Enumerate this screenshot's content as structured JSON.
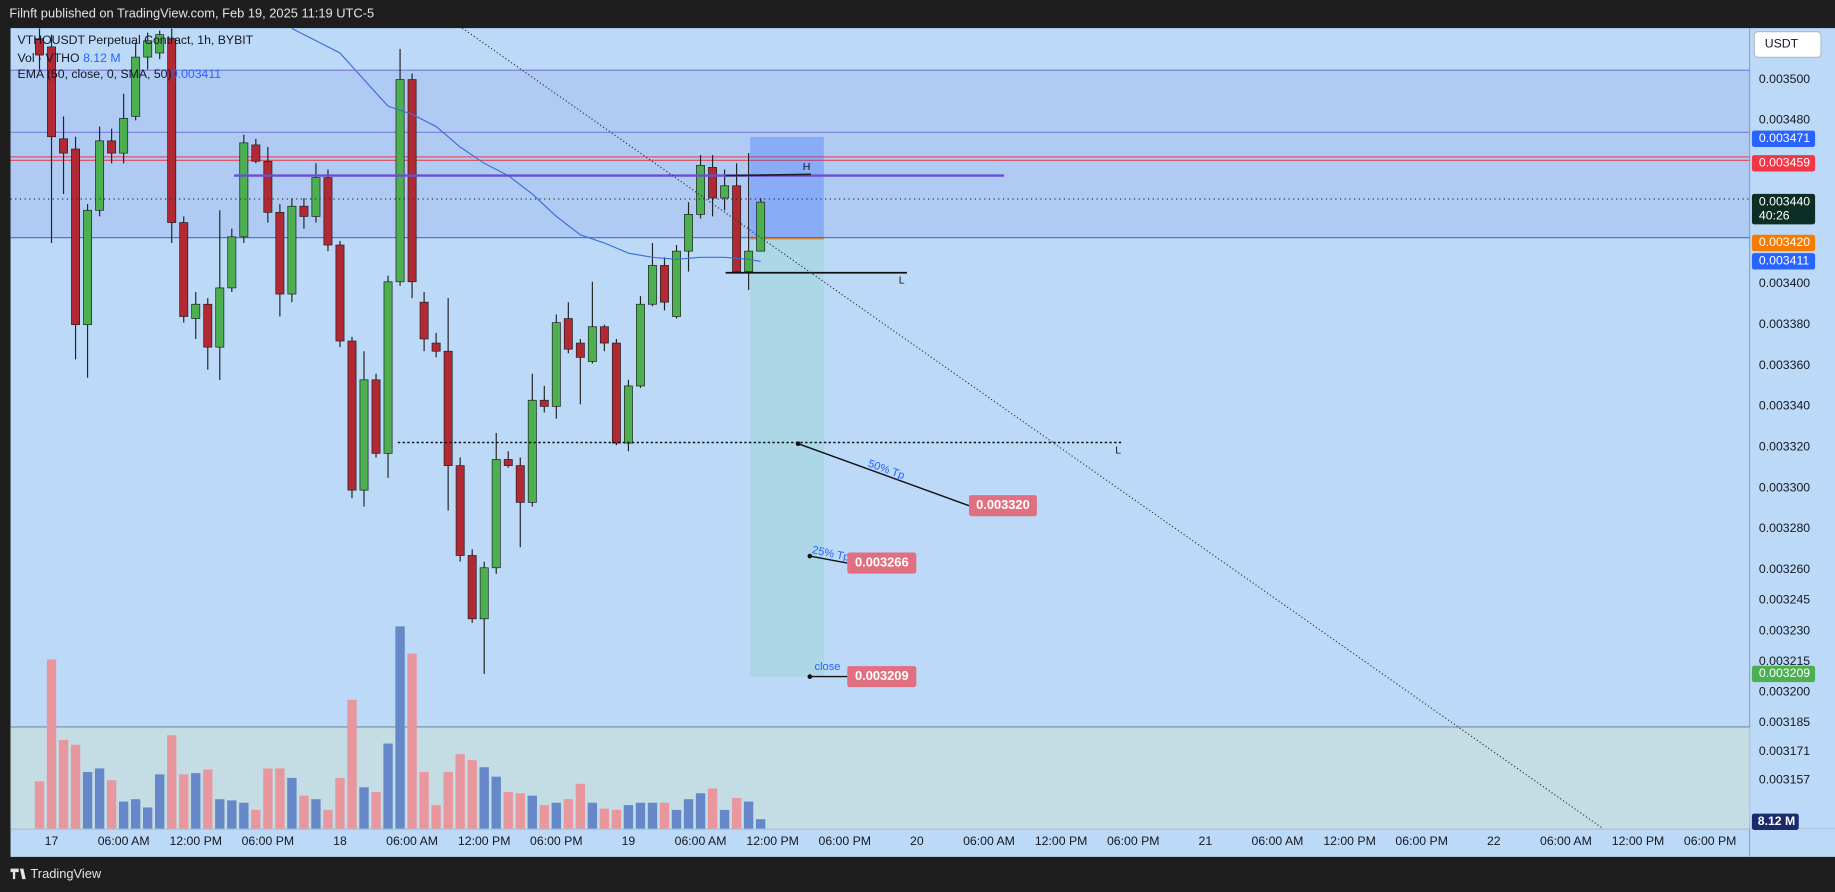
{
  "header": {
    "publisher": "Filnft published on TradingView.com, Feb 19, 2025 11:19 UTC-5"
  },
  "footer": {
    "brand": "TradingView"
  },
  "currency_button": "USDT",
  "chart_data": {
    "type": "candlestick",
    "title": "VTHOUSDT Perpetual Contract, 1h, BYBIT",
    "x": [
      -1,
      0,
      1,
      2,
      3,
      4,
      5,
      6,
      7,
      8,
      9,
      10,
      11,
      12,
      13,
      14,
      15,
      16,
      17,
      18,
      19,
      20,
      21,
      22,
      23,
      24,
      25,
      26,
      27,
      28,
      29,
      30,
      31,
      32,
      33,
      34,
      35,
      36,
      37,
      38,
      39,
      40,
      41,
      42,
      43,
      44,
      45,
      46,
      47,
      48,
      49,
      50,
      51,
      52,
      53,
      54,
      55,
      56,
      57,
      58,
      59
    ],
    "open": [
      0.00352,
      0.003516,
      0.003471,
      0.003466,
      0.00338,
      0.003436,
      0.00347,
      0.003464,
      0.003482,
      0.003511,
      0.003513,
      0.00352,
      0.00343,
      0.003383,
      0.00339,
      0.003369,
      0.003398,
      0.003423,
      0.003468,
      0.00346,
      0.003435,
      0.003395,
      0.003438,
      0.003433,
      0.003452,
      0.003419,
      0.003372,
      0.003299,
      0.003353,
      0.003317,
      0.003401,
      0.0035,
      0.003391,
      0.003371,
      0.003367,
      0.003311,
      0.003267,
      0.003236,
      0.003261,
      0.003314,
      0.003311,
      0.003293,
      0.003343,
      0.00334,
      0.003383,
      0.003371,
      0.003362,
      0.003379,
      0.003371,
      0.003322,
      0.00335,
      0.00339,
      0.003409,
      0.003384,
      0.003416,
      0.003434,
      0.003457,
      0.003442,
      0.003448,
      0.003406,
      0.003416
    ],
    "high": [
      0.003525,
      0.003522,
      0.003482,
      0.003472,
      0.003439,
      0.003477,
      0.003476,
      0.003493,
      0.003518,
      0.003523,
      0.003524,
      0.003525,
      0.003433,
      0.003396,
      0.003393,
      0.003436,
      0.003427,
      0.003473,
      0.003471,
      0.003467,
      0.003439,
      0.003442,
      0.003442,
      0.003459,
      0.003456,
      0.003421,
      0.003374,
      0.003367,
      0.003356,
      0.003404,
      0.003515,
      0.003503,
      0.003396,
      0.003376,
      0.003393,
      0.003315,
      0.00327,
      0.003264,
      0.003327,
      0.003318,
      0.003315,
      0.003356,
      0.00335,
      0.003385,
      0.003391,
      0.003373,
      0.003401,
      0.00338,
      0.003373,
      0.003353,
      0.003394,
      0.00342,
      0.003413,
      0.003419,
      0.00344,
      0.003463,
      0.003463,
      0.003456,
      0.003459,
      0.003464,
      0.003442
    ],
    "low": [
      0.003505,
      0.00342,
      0.003444,
      0.003363,
      0.003354,
      0.003433,
      0.003459,
      0.003459,
      0.00348,
      0.003505,
      0.00351,
      0.00342,
      0.003381,
      0.003373,
      0.003358,
      0.003353,
      0.003396,
      0.00342,
      0.003459,
      0.00343,
      0.003384,
      0.003391,
      0.003427,
      0.00343,
      0.003416,
      0.003369,
      0.003295,
      0.003291,
      0.003315,
      0.003305,
      0.003399,
      0.003393,
      0.003367,
      0.003364,
      0.003289,
      0.003264,
      0.003234,
      0.003209,
      0.003258,
      0.00331,
      0.003271,
      0.003291,
      0.003337,
      0.003334,
      0.003366,
      0.003341,
      0.003361,
      0.003367,
      0.003321,
      0.003318,
      0.003349,
      0.003389,
      0.003387,
      0.003383,
      0.003406,
      0.003432,
      0.003433,
      0.003436,
      0.003405,
      0.003397,
      0.003416
    ],
    "close": [
      0.003512,
      0.003472,
      0.003464,
      0.00338,
      0.003436,
      0.00347,
      0.003464,
      0.003481,
      0.003511,
      0.003519,
      0.003522,
      0.00343,
      0.003384,
      0.00339,
      0.003369,
      0.003398,
      0.003423,
      0.003469,
      0.00346,
      0.003435,
      0.003395,
      0.003438,
      0.003433,
      0.003452,
      0.003419,
      0.003372,
      0.003299,
      0.003353,
      0.003317,
      0.003401,
      0.0035,
      0.003401,
      0.003373,
      0.003367,
      0.003311,
      0.003267,
      0.003236,
      0.003261,
      0.003314,
      0.003311,
      0.003293,
      0.003343,
      0.00334,
      0.003381,
      0.003368,
      0.003364,
      0.003379,
      0.003371,
      0.003322,
      0.00335,
      0.00339,
      0.003409,
      0.003391,
      0.003416,
      0.003434,
      0.003458,
      0.003442,
      0.003448,
      0.003406,
      0.003416,
      0.00344
    ],
    "up_color": "#4caf50",
    "down_color": "#b22833",
    "xlim": [
      -3.41,
      141.28
    ],
    "xticks": [
      {
        "value": 0,
        "label": "17"
      },
      {
        "value": 6,
        "label": "06:00 AM"
      },
      {
        "value": 12,
        "label": "12:00 PM"
      },
      {
        "value": 18,
        "label": "06:00 PM"
      },
      {
        "value": 24,
        "label": "18"
      },
      {
        "value": 30,
        "label": "06:00 AM"
      },
      {
        "value": 36,
        "label": "12:00 PM"
      },
      {
        "value": 42,
        "label": "06:00 PM"
      },
      {
        "value": 48,
        "label": "19"
      },
      {
        "value": 54,
        "label": "06:00 AM"
      },
      {
        "value": 60,
        "label": "12:00 PM"
      },
      {
        "value": 66,
        "label": "06:00 PM"
      },
      {
        "value": 72,
        "label": "20"
      },
      {
        "value": 78,
        "label": "06:00 AM"
      },
      {
        "value": 84,
        "label": "12:00 PM"
      },
      {
        "value": 90,
        "label": "06:00 PM"
      },
      {
        "value": 96,
        "label": "21"
      },
      {
        "value": 102,
        "label": "06:00 AM"
      },
      {
        "value": 108,
        "label": "12:00 PM"
      },
      {
        "value": 114,
        "label": "06:00 PM"
      },
      {
        "value": 120,
        "label": "22"
      },
      {
        "value": 126,
        "label": "06:00 AM"
      },
      {
        "value": 132,
        "label": "12:00 PM"
      },
      {
        "value": 138,
        "label": "06:00 PM"
      }
    ],
    "ylim": [
      0.0031332,
      0.0035252
    ],
    "yticks": [
      {
        "value": 0.0035,
        "label": "0.003500"
      },
      {
        "value": 0.00348,
        "label": "0.003480"
      },
      {
        "value": 0.0034,
        "label": "0.003400"
      },
      {
        "value": 0.00338,
        "label": "0.003380"
      },
      {
        "value": 0.00336,
        "label": "0.003360"
      },
      {
        "value": 0.00334,
        "label": "0.003340"
      },
      {
        "value": 0.00332,
        "label": "0.003320"
      },
      {
        "value": 0.0033,
        "label": "0.003300"
      },
      {
        "value": 0.00328,
        "label": "0.003280"
      },
      {
        "value": 0.00326,
        "label": "0.003260"
      },
      0.003245,
      {
        "value": 0.00323,
        "label": "0.003230"
      },
      0.003215,
      {
        "value": 0.0032,
        "label": "0.003200"
      },
      0.003185,
      0.003171,
      0.003157
    ],
    "volume": {
      "name": "Vol · VTHO",
      "up_color": "#6688c8",
      "down_color": "#e8979e",
      "ylim": [
        0,
        176
      ],
      "last": {
        "value": 8.12,
        "label": "8.12 M"
      },
      "values": [
        40,
        143,
        75,
        71,
        48,
        51,
        41,
        23,
        25,
        18,
        46,
        79,
        46,
        47,
        50,
        25,
        24,
        22,
        16,
        51,
        51,
        43,
        28,
        25,
        16,
        43,
        109,
        35,
        31,
        72,
        171,
        148,
        48,
        20,
        48,
        63,
        58,
        52,
        44,
        31,
        30,
        28,
        20,
        22,
        25,
        38,
        22,
        17,
        16,
        20,
        22,
        22,
        22,
        16,
        25,
        30,
        34,
        16,
        26,
        23,
        8.12
      ]
    },
    "ema": {
      "name": "EMA (50, close, 0, SMA, 50)",
      "color": "#3a6fd8",
      "last": 0.003411,
      "x": [
        20,
        22,
        24,
        26,
        28,
        30,
        32,
        34,
        36,
        38,
        40,
        42,
        44,
        46,
        48,
        50,
        52,
        54,
        56,
        58,
        59
      ],
      "values": [
        0.003525,
        0.003519,
        0.003513,
        0.0035,
        0.003487,
        0.003483,
        0.003477,
        0.003467,
        0.003459,
        0.003453,
        0.003444,
        0.003433,
        0.003424,
        0.00342,
        0.003415,
        0.003413,
        0.003412,
        0.003413,
        0.003413,
        0.003412,
        0.003411
      ]
    },
    "price_badges": [
      {
        "value": 0.003471,
        "color": "#2962ff"
      },
      {
        "value": 0.003459,
        "color": "#f23645"
      },
      {
        "value": 0.00344,
        "label": "0.003440",
        "color": "#0d2e25"
      },
      {
        "value": 0.00342,
        "label": "0.003420",
        "color": "#f57c00"
      },
      {
        "value": 0.003411,
        "color": "#2962ff"
      },
      {
        "value": 0.003209,
        "color": "#4caf50"
      }
    ],
    "countdown": "40:26",
    "annotations": [
      {
        "text": "50% Tp",
        "price": {
          "value": 0.00332,
          "label": "0.003320"
        }
      },
      {
        "text": "25% Tp",
        "price": 0.003266
      },
      {
        "text": "close",
        "price": 0.003209
      }
    ],
    "level_labels": [
      "H",
      "L",
      "L"
    ]
  }
}
